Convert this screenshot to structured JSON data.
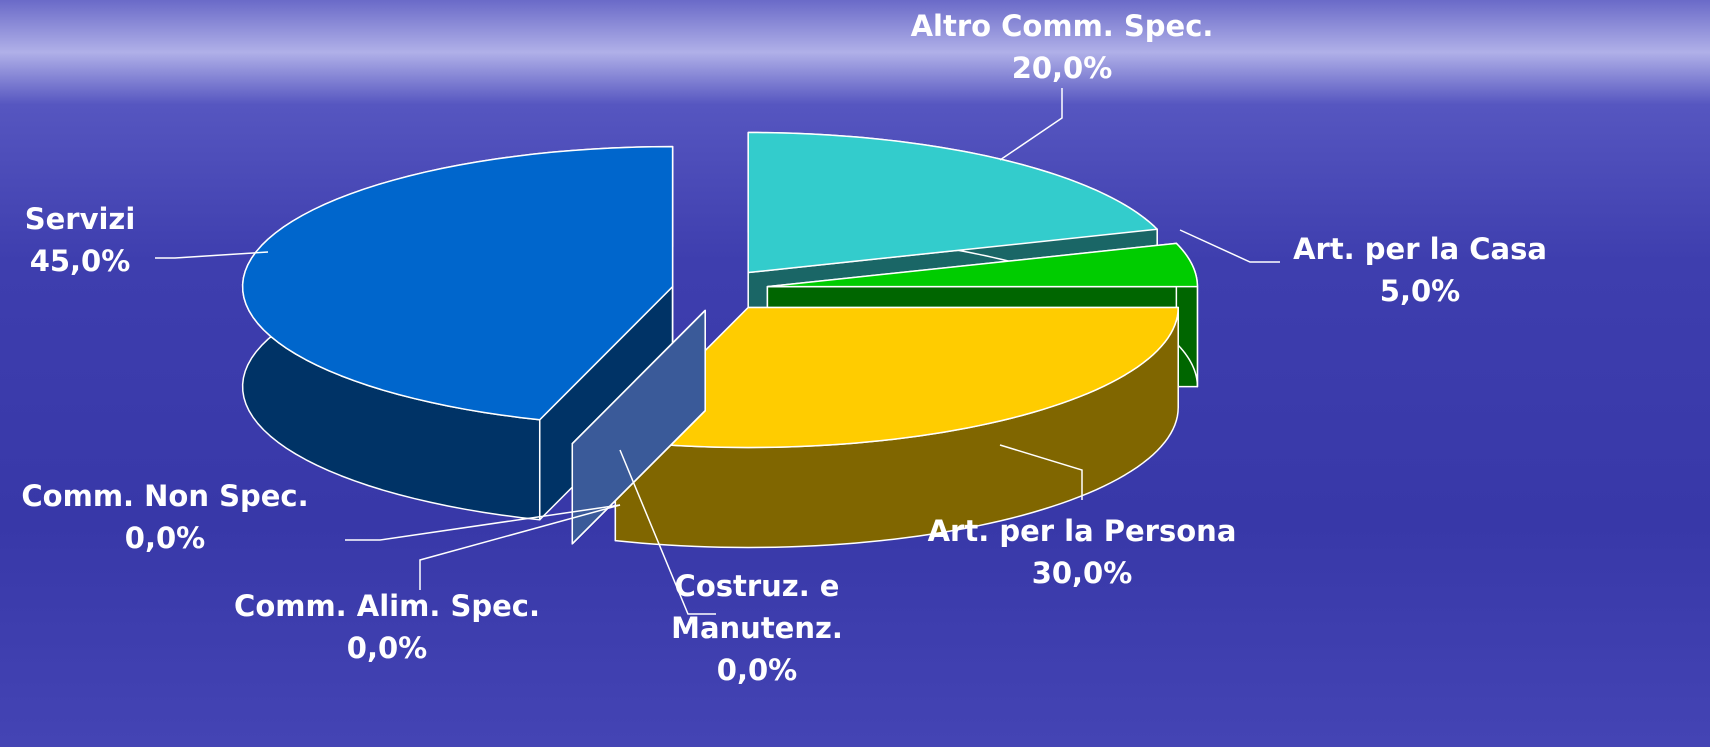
{
  "chart_data": {
    "type": "pie",
    "categories": [
      "Altro Comm. Spec.",
      "Art. per la Casa",
      "Art. per la Persona",
      "Costruz. e Manutenz.",
      "Comm. Alim. Spec.",
      "Comm. Non Spec.",
      "Servizi"
    ],
    "values": [
      20,
      5,
      30,
      0,
      0,
      0,
      45
    ],
    "value_labels": [
      "20,0%",
      "5,0%",
      "30,0%",
      "0,0%",
      "0,0%",
      "0,0%",
      "45,0%"
    ],
    "colors": [
      "#33cccc",
      "#00cc00",
      "#ffcc00",
      "#3a5a99",
      "#3a5a99",
      "#3a5a99",
      "#0066cc"
    ]
  }
}
